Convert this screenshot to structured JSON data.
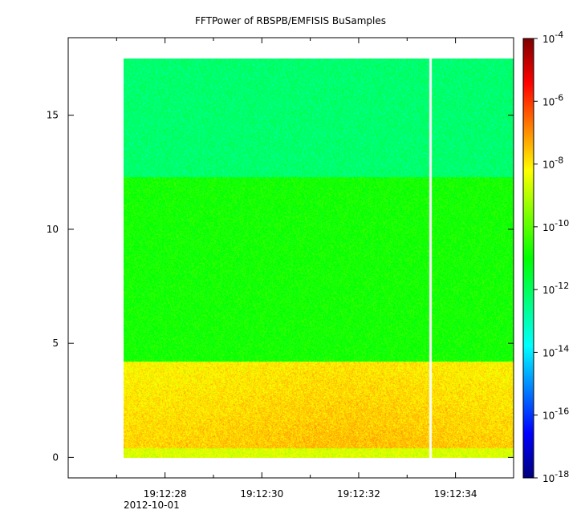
{
  "chart_data": {
    "type": "heatmap",
    "title": "FFTPower of RBSPB/EMFISIS  BuSamples",
    "xlabel": "",
    "ylabel": "",
    "x_axis": {
      "unit": "time",
      "range_seconds_after": [
        "19:12:26.0",
        "19:12:35.2"
      ],
      "ticks": [
        {
          "label": "19:12:28",
          "t": 28
        },
        {
          "label": "19:12:30",
          "t": 30
        },
        {
          "label": "19:12:32",
          "t": 32
        },
        {
          "label": "19:12:34",
          "t": 34
        }
      ],
      "minor_ticks": [
        27,
        29,
        31,
        33
      ],
      "date_label": "2012-10-01"
    },
    "y_axis": {
      "ylim": [
        -0.9,
        18.4
      ],
      "ticks": [
        0,
        5,
        10,
        15
      ]
    },
    "data_extent": {
      "x_start": 27.65,
      "x_end": 35.2,
      "y_start": 0,
      "y_end": 17.5,
      "gap_at": 33.6
    },
    "colorbar": {
      "scale": "log",
      "range": [
        -18,
        -4
      ],
      "ticks": [
        {
          "base": "10",
          "exp": "-4",
          "v": -4
        },
        {
          "base": "10",
          "exp": "-6",
          "v": -6
        },
        {
          "base": "10",
          "exp": "-8",
          "v": -8
        },
        {
          "base": "10",
          "exp": "-10",
          "v": -10
        },
        {
          "base": "10",
          "exp": "-12",
          "v": -12
        },
        {
          "base": "10",
          "exp": "-14",
          "v": -14
        },
        {
          "base": "10",
          "exp": "-16",
          "v": -16
        },
        {
          "base": "10",
          "exp": "-18",
          "v": -18
        }
      ],
      "colormap": [
        "#00007f",
        "#0000ff",
        "#007fff",
        "#00ffff",
        "#00ff7f",
        "#00ff00",
        "#7fff00",
        "#ffff00",
        "#ff7f00",
        "#ff0000",
        "#7f0000"
      ]
    },
    "bands": [
      {
        "y_from": 12.3,
        "y_to": 17.5,
        "log_power": -12.2
      },
      {
        "y_from": 4.2,
        "y_to": 12.3,
        "log_power": -10.8
      },
      {
        "y_from": 0.4,
        "y_to": 4.2,
        "log_power": -7.8
      },
      {
        "y_from": 0,
        "y_to": 0.4,
        "log_power": -8.6
      }
    ]
  }
}
